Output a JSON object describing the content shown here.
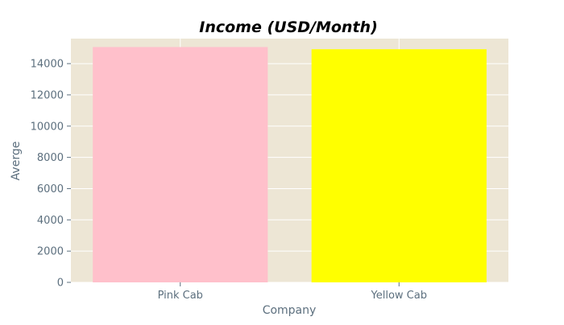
{
  "chart_data": {
    "type": "bar",
    "title": "Income (USD/Month)",
    "xlabel": "Company",
    "ylabel": "Averge",
    "categories": [
      "Pink Cab",
      "Yellow Cab"
    ],
    "values": [
      15060,
      14920
    ],
    "colors": [
      "#ffc0cb",
      "#ffff00"
    ],
    "ylim": [
      0,
      15600
    ],
    "yticks": [
      0,
      2000,
      4000,
      6000,
      8000,
      10000,
      12000,
      14000
    ],
    "grid": true,
    "plot_background": "#ede6d5",
    "grid_color": "#ffffff",
    "text_color": "#5c6f7e"
  }
}
